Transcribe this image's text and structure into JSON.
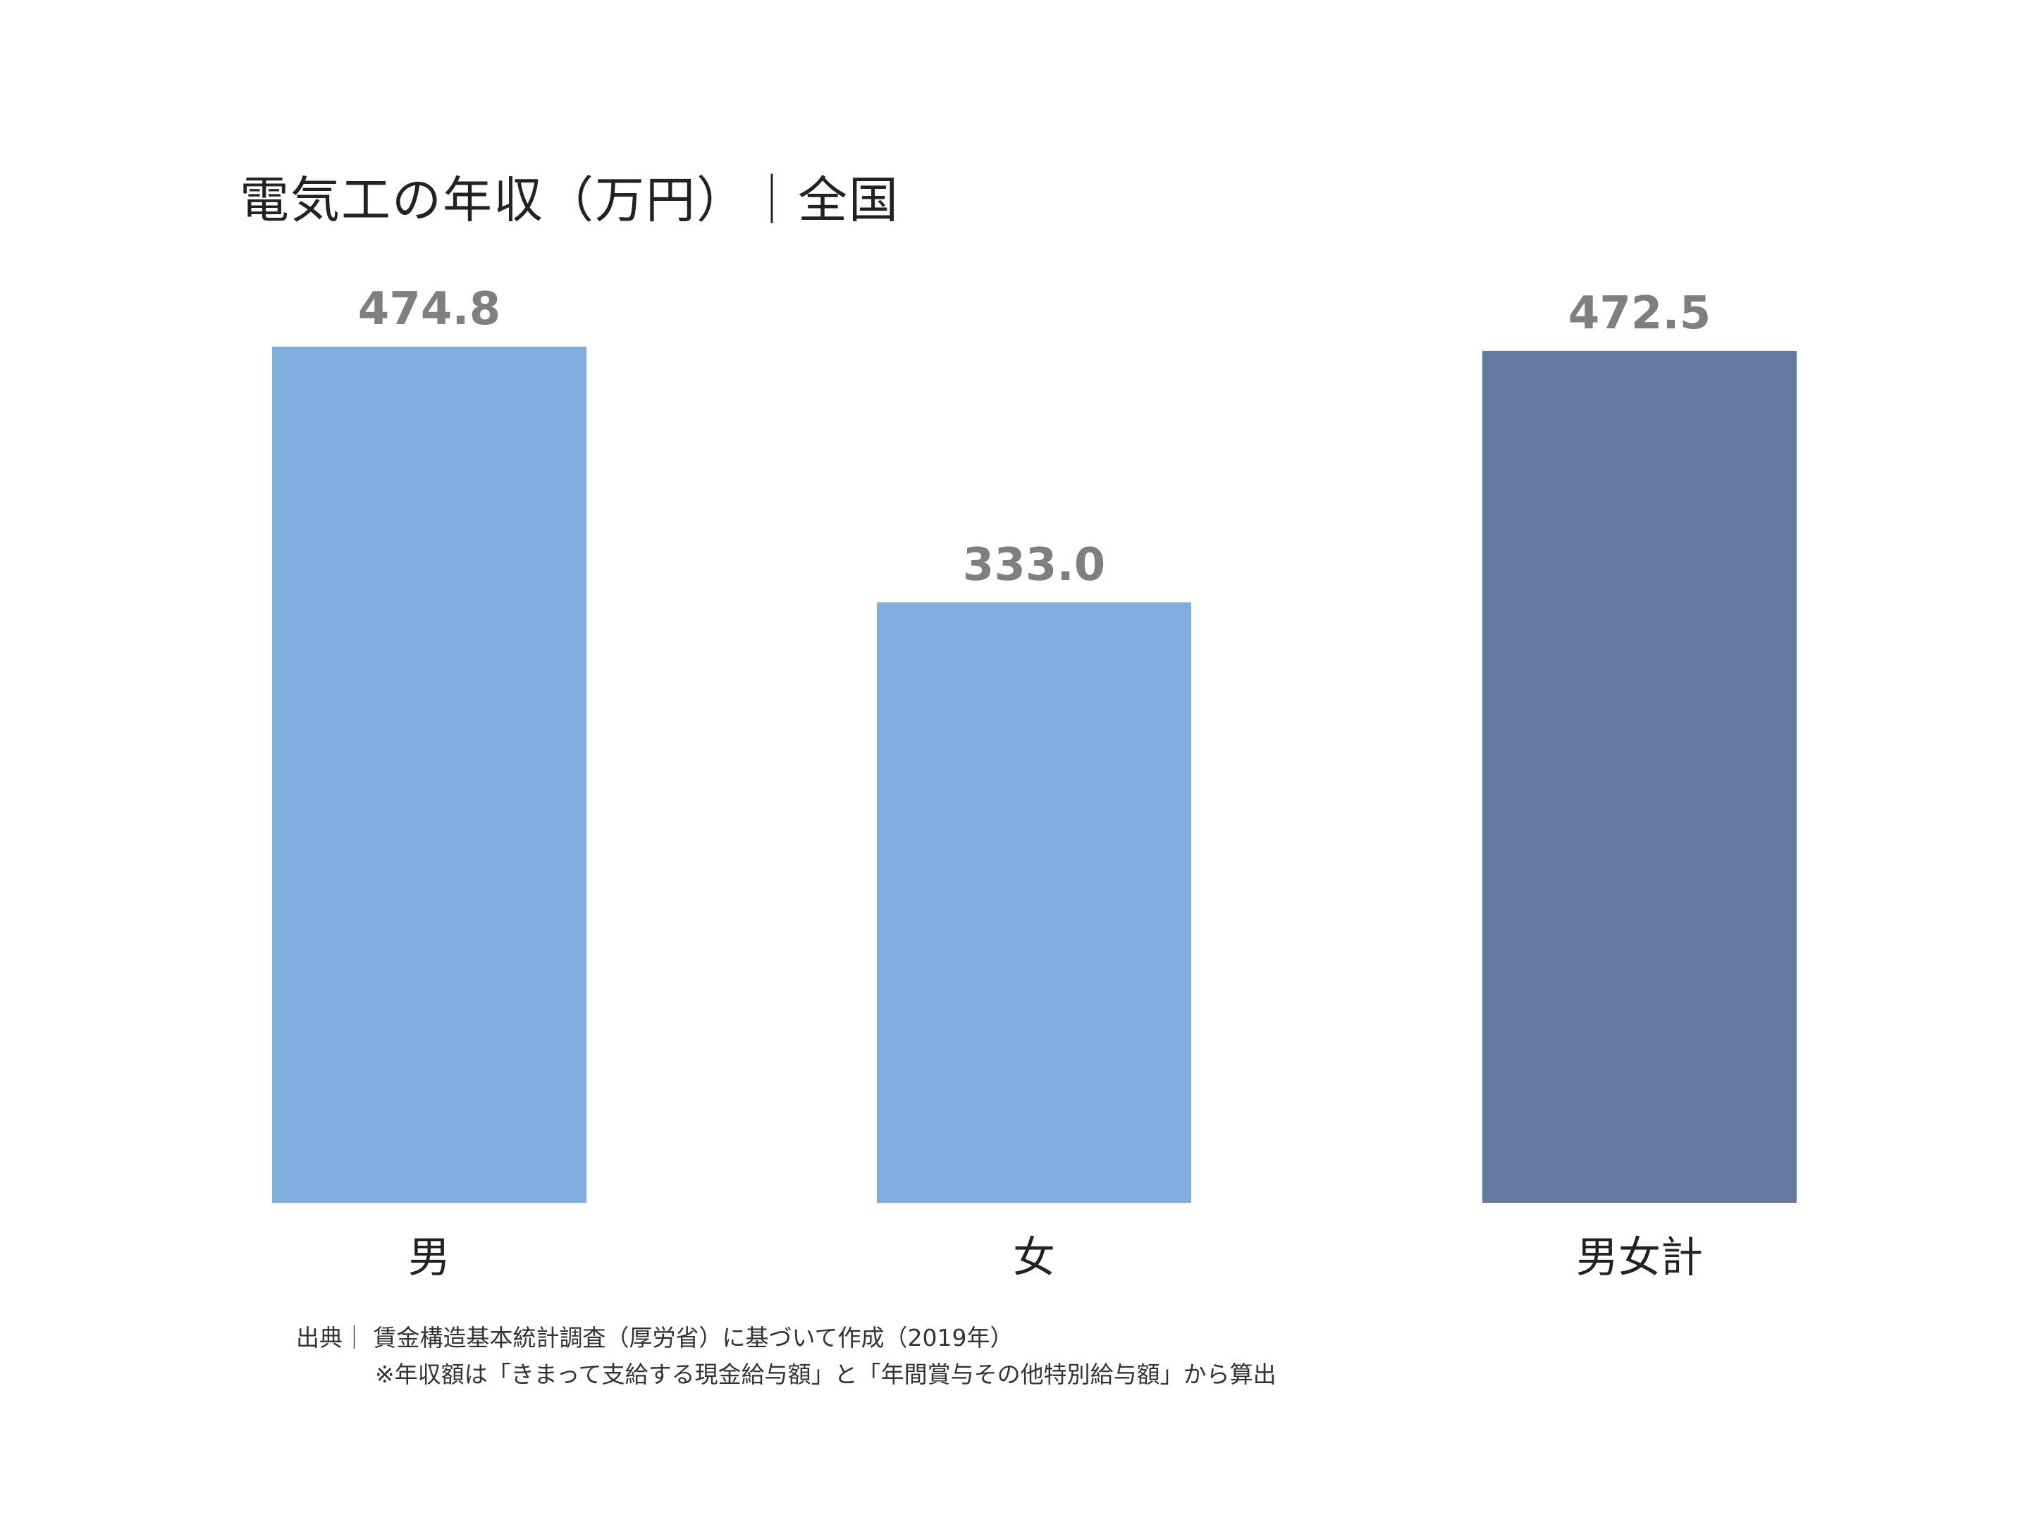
{
  "chart_data": {
    "type": "bar",
    "title": "電気工の年収（万円）｜全国",
    "categories": [
      "男",
      "女",
      "男女計"
    ],
    "values": [
      474.8,
      333.0,
      472.5
    ],
    "value_labels": [
      "474.8",
      "333.0",
      "472.5"
    ],
    "colors": [
      "#7eaedd",
      "#7eaedd",
      "#66799f"
    ],
    "ylim": [
      0,
      474.8
    ],
    "grid": false,
    "legend": "none"
  },
  "footer": {
    "source": "出典｜ 賃金構造基本統計調査（厚労省）に基づいて作成（2019年）",
    "note": "※年収額は「きまって支給する現金給与額」と「年間賞与その他特別給与額」から算出"
  }
}
